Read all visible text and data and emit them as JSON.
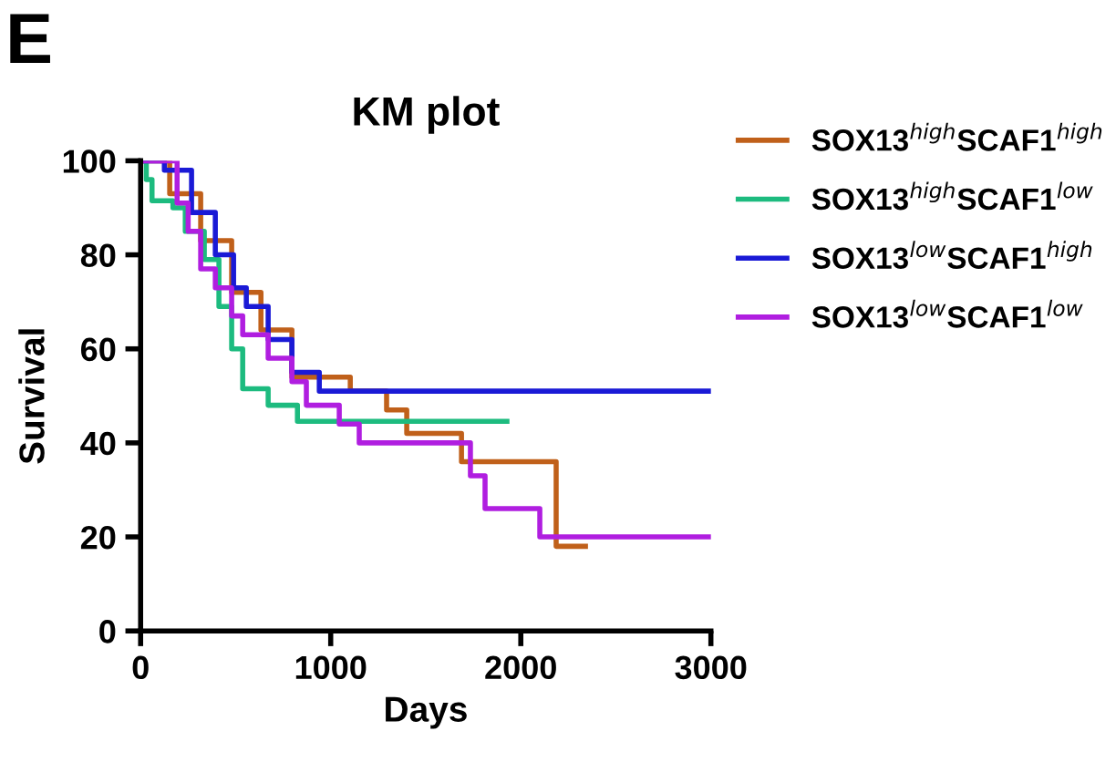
{
  "chart_data": {
    "type": "step",
    "title": "KM plot",
    "xlabel": "Days",
    "ylabel": "Survival",
    "annotations": [
      "E"
    ],
    "xlim": [
      0,
      3000
    ],
    "xticks": [
      0,
      1000,
      2000,
      3000
    ],
    "ylim": [
      0,
      100
    ],
    "yticks": [
      0,
      20,
      40,
      60,
      80,
      100
    ],
    "grid": false,
    "legend": "right",
    "marker": "none",
    "line_style": "solid",
    "series": [
      {
        "name": "SOX13$^{high}$SCAF1$^{high}$",
        "color": "#c0601a",
        "x": [
          0,
          153,
          316,
          479,
          633,
          796,
          1103,
          1294,
          1400,
          1688,
          2186,
          2340
        ],
        "values": [
          100,
          93,
          83,
          72,
          64,
          54,
          51,
          47,
          42,
          36,
          18,
          18
        ]
      },
      {
        "name": "SOX13$^{high}$SCAF1$^{low}$",
        "color": "#1dbb7f",
        "x": [
          0,
          30,
          60,
          170,
          235,
          335,
          412,
          479,
          537,
          671,
          825,
          1927
        ],
        "values": [
          100,
          96,
          91.5,
          90,
          85,
          79,
          69,
          60,
          51.5,
          48,
          44.6,
          44.6
        ]
      },
      {
        "name": "SOX13$^{low}$SCAF1$^{high}$",
        "color": "#1a1ad6",
        "x": [
          0,
          125,
          268,
          393,
          489,
          556,
          671,
          796,
          940,
          3000
        ],
        "values": [
          100,
          98,
          89,
          80,
          73,
          69,
          62,
          55,
          51,
          51
        ]
      },
      {
        "name": "SOX13$^{low}$SCAF1$^{low}$",
        "color": "#b01ee0",
        "x": [
          0,
          192,
          250,
          316,
          393,
          479,
          537,
          671,
          796,
          872,
          1045,
          1150,
          1735,
          1812,
          2100,
          3000
        ],
        "values": [
          100,
          91,
          85,
          77,
          73,
          67,
          63,
          58,
          53,
          48,
          44,
          40,
          33,
          26,
          20,
          20
        ]
      }
    ]
  }
}
